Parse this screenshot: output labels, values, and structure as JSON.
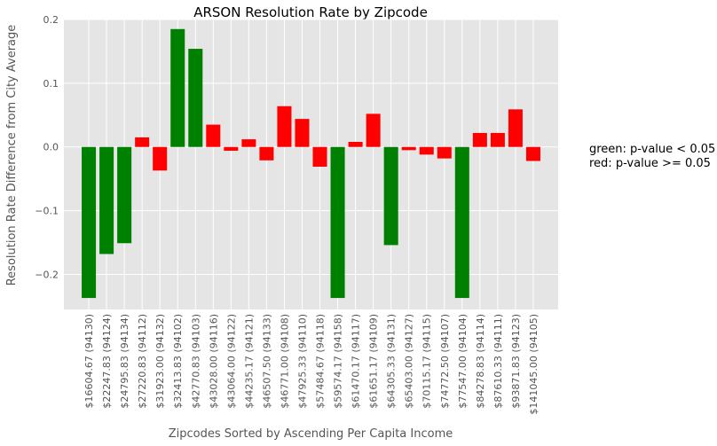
{
  "chart_data": {
    "type": "bar",
    "title": "ARSON Resolution Rate by Zipcode",
    "xlabel": "Zipcodes Sorted by Ascending Per Capita Income",
    "ylabel": "Resolution Rate Difference from City Average",
    "ylim": [
      -0.255,
      0.2
    ],
    "yticks": [
      -0.2,
      -0.1,
      0.0,
      0.1,
      0.2
    ],
    "ytick_labels": [
      "−0.2",
      "−0.1",
      "0.0",
      "0.1",
      "0.2"
    ],
    "grid": true,
    "background": "#e5e5e5",
    "colors": {
      "significant": "#008000",
      "not_significant": "#ff0000"
    },
    "categories": [
      "$16604.67 (94130)",
      "$22247.83 (94124)",
      "$24795.83 (94134)",
      "$27220.83 (94112)",
      "$31923.00 (94132)",
      "$32413.83 (94102)",
      "$42770.83 (94103)",
      "$43028.00 (94116)",
      "$43064.00 (94122)",
      "$44235.17 (94121)",
      "$46507.50 (94133)",
      "$46771.00 (94108)",
      "$47925.33 (94110)",
      "$57484.67 (94118)",
      "$59574.17 (94158)",
      "$61470.17 (94117)",
      "$61651.17 (94109)",
      "$64305.33 (94131)",
      "$65403.00 (94127)",
      "$70115.17 (94115)",
      "$74772.50 (94107)",
      "$77547.00 (94104)",
      "$84278.83 (94114)",
      "$87610.33 (94111)",
      "$93871.83 (94123)",
      "$141045.00 (94105)"
    ],
    "values": [
      -0.237,
      -0.168,
      -0.151,
      0.015,
      -0.037,
      0.185,
      0.154,
      0.035,
      -0.006,
      0.012,
      -0.021,
      0.064,
      0.044,
      -0.031,
      -0.237,
      0.008,
      0.052,
      -0.154,
      -0.005,
      -0.012,
      -0.018,
      -0.237,
      0.022,
      0.022,
      0.059,
      -0.022
    ],
    "significant": [
      true,
      true,
      true,
      false,
      false,
      true,
      true,
      false,
      false,
      false,
      false,
      false,
      false,
      false,
      true,
      false,
      false,
      true,
      false,
      false,
      false,
      true,
      false,
      false,
      false,
      false
    ]
  },
  "legend_note": {
    "line1": "green: p-value < 0.05",
    "line2": "red: p-value >= 0.05"
  }
}
